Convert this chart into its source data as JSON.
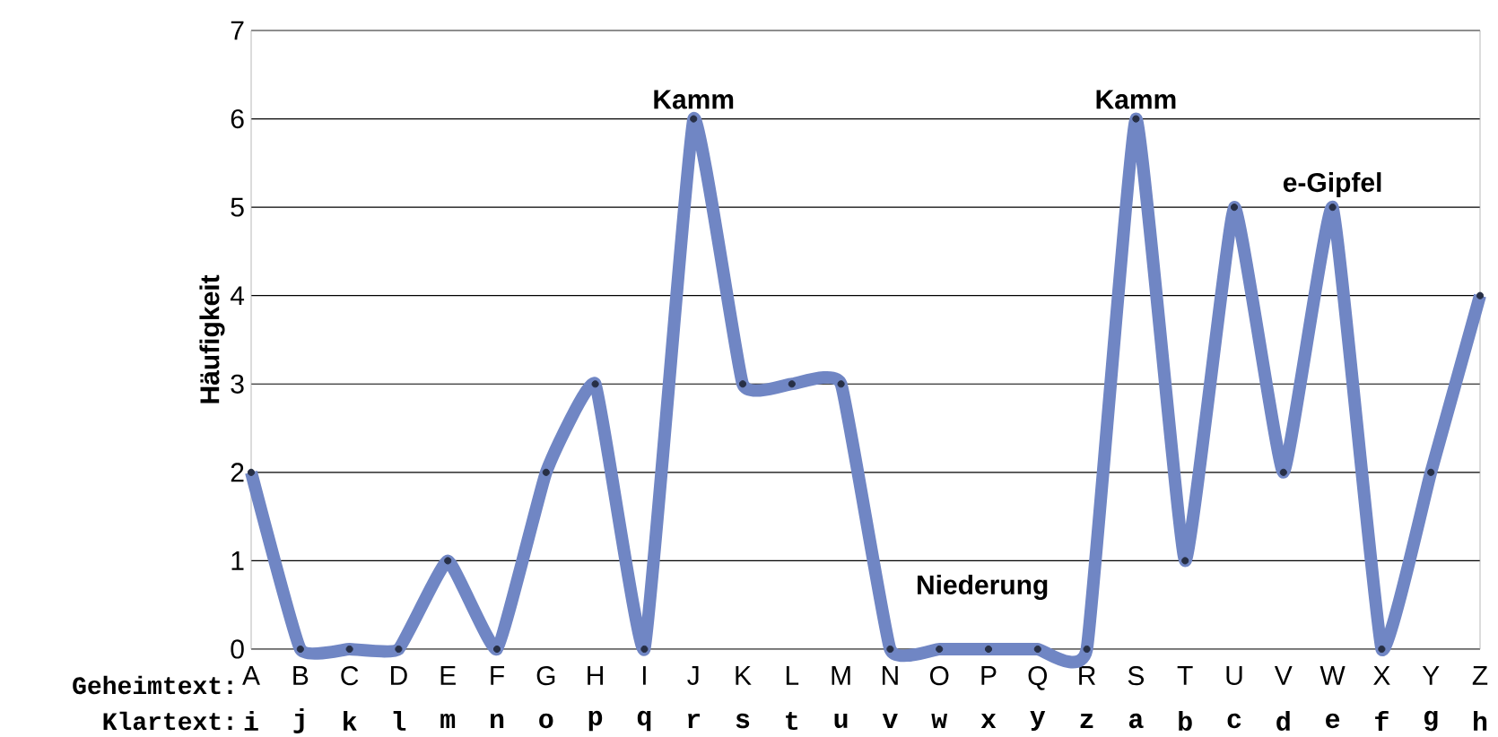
{
  "chart_data": {
    "type": "line",
    "ylabel": "Häufigkeit",
    "categories": [
      "A",
      "B",
      "C",
      "D",
      "E",
      "F",
      "G",
      "H",
      "I",
      "J",
      "K",
      "L",
      "M",
      "N",
      "O",
      "P",
      "Q",
      "R",
      "S",
      "T",
      "U",
      "V",
      "W",
      "X",
      "Y",
      "Z"
    ],
    "values": [
      2,
      0,
      0,
      0,
      1,
      0,
      2,
      3,
      0,
      6,
      3,
      3,
      3,
      0,
      0,
      0,
      0,
      0,
      6,
      1,
      5,
      2,
      5,
      0,
      2,
      4
    ],
    "color": "#7086c4",
    "marker": "circle",
    "line_style": "solid",
    "grid": "y",
    "ylim": [
      0,
      7
    ],
    "yticks": [
      0,
      1,
      2,
      3,
      4,
      5,
      6,
      7
    ],
    "annotations": [
      "Geheimtext:",
      "Klartext:",
      "Niederung",
      {
        "text": "Kamm",
        "x": "J",
        "y": 6
      },
      {
        "text": "Kamm",
        "x": "S",
        "y": 6
      },
      {
        "text": "e-Gipfel",
        "x": "W",
        "y": 5
      },
      "i",
      "j",
      "k",
      "l",
      "m",
      "n",
      "o",
      "p",
      "q",
      "r",
      "s",
      "t",
      "u",
      "v",
      "w",
      "x",
      "y",
      "z",
      "a",
      "b",
      "c",
      "d",
      "e",
      "f",
      "g",
      "h"
    ]
  }
}
